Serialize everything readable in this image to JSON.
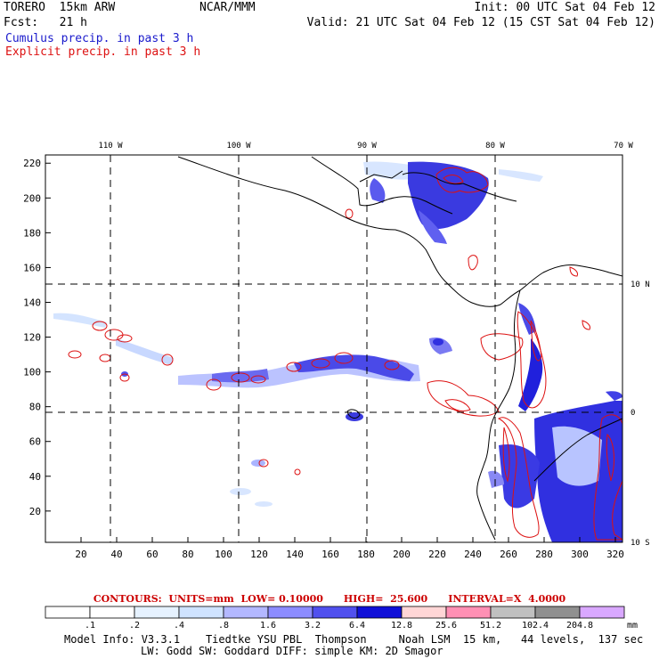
{
  "header": {
    "model": "TORERO  15km ARW",
    "org": "NCAR/MMM",
    "init": "Init: 00 UTC Sat 04 Feb 12",
    "fcst": "Fcst:   21 h",
    "valid": "Valid: 21 UTC Sat 04 Feb 12 (15 CST Sat 04 Feb 12)"
  },
  "legend": {
    "cumulus": "Cumulus precip. in past 3 h",
    "explicit": "Explicit precip. in past 3 h"
  },
  "axes": {
    "x_ticks": [
      "20",
      "40",
      "60",
      "80",
      "100",
      "120",
      "140",
      "160",
      "180",
      "200",
      "220",
      "240",
      "260",
      "280",
      "300",
      "320"
    ],
    "y_ticks": [
      "20",
      "40",
      "60",
      "80",
      "100",
      "120",
      "140",
      "160",
      "180",
      "200",
      "220"
    ],
    "lon_labels": [
      "110 W",
      "100 W",
      "90 W",
      "80 W",
      "70 W"
    ],
    "lat_labels": [
      "10 N",
      "0",
      "10 S"
    ]
  },
  "contours": {
    "units_text": "CONTOURS:  UNITS=mm  LOW= 0.10000",
    "high_text": "HIGH=  25.600",
    "interval_text": "INTERVAL=X  4.0000"
  },
  "colorbar": {
    "labels": [
      ".1",
      ".2",
      ".4",
      ".8",
      "1.6",
      "3.2",
      "6.4",
      "12.8",
      "25.6",
      "51.2",
      "102.4",
      "204.8"
    ],
    "unit": "mm",
    "colors": [
      "#ffffff",
      "#ffffff",
      "#e6f2ff",
      "#cfe3ff",
      "#b3b8ff",
      "#8c8cff",
      "#5050ee",
      "#1010d8",
      "#ffd6d6",
      "#ff90b4",
      "#c0c0c0",
      "#909090",
      "#d9a8ff"
    ]
  },
  "model_info": {
    "line1": "Model Info: V3.3.1    Tiedtke YSU PBL  Thompson     Noah LSM  15 km,   44 levels,  137 sec",
    "line2": "LW: Godd SW: Goddard DIFF: simple KM: 2D Smagor"
  }
}
